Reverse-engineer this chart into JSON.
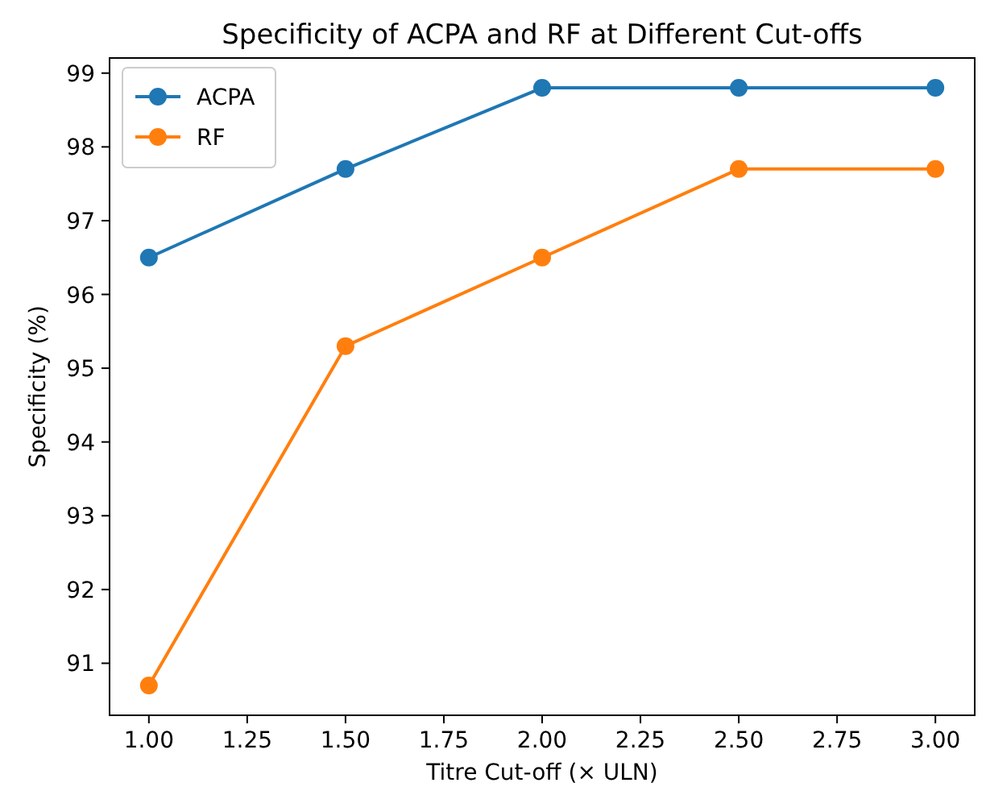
{
  "chart_data": {
    "type": "line",
    "title": "Specificity of ACPA and RF at Different Cut-offs",
    "xlabel": "Titre Cut-off (× ULN)",
    "ylabel": "Specificity (%)",
    "x": [
      1.0,
      1.5,
      2.0,
      2.5,
      3.0
    ],
    "series": [
      {
        "name": "ACPA",
        "color": "#1f77b4",
        "values": [
          96.5,
          97.7,
          98.8,
          98.8,
          98.8
        ]
      },
      {
        "name": "RF",
        "color": "#ff7f0e",
        "values": [
          90.7,
          95.3,
          96.5,
          97.7,
          97.7
        ]
      }
    ],
    "xlim": [
      0.9,
      3.1
    ],
    "xticks": [
      {
        "value": 1,
        "label": "1.00"
      },
      {
        "value": 1.25,
        "label": "1.25"
      },
      {
        "value": 1.5,
        "label": "1.50"
      },
      {
        "value": 1.75,
        "label": "1.75"
      },
      {
        "value": 2,
        "label": "2.00"
      },
      {
        "value": 2.25,
        "label": "2.25"
      },
      {
        "value": 2.5,
        "label": "2.50"
      },
      {
        "value": 2.75,
        "label": "2.75"
      },
      {
        "value": 3,
        "label": "3.00"
      }
    ],
    "ylim": [
      90.295,
      99.205
    ],
    "yticks": [
      91,
      92,
      93,
      94,
      95,
      96,
      97,
      98,
      99
    ],
    "marker": "circle",
    "line_style": "solid",
    "legend": "top left",
    "grid": false
  }
}
